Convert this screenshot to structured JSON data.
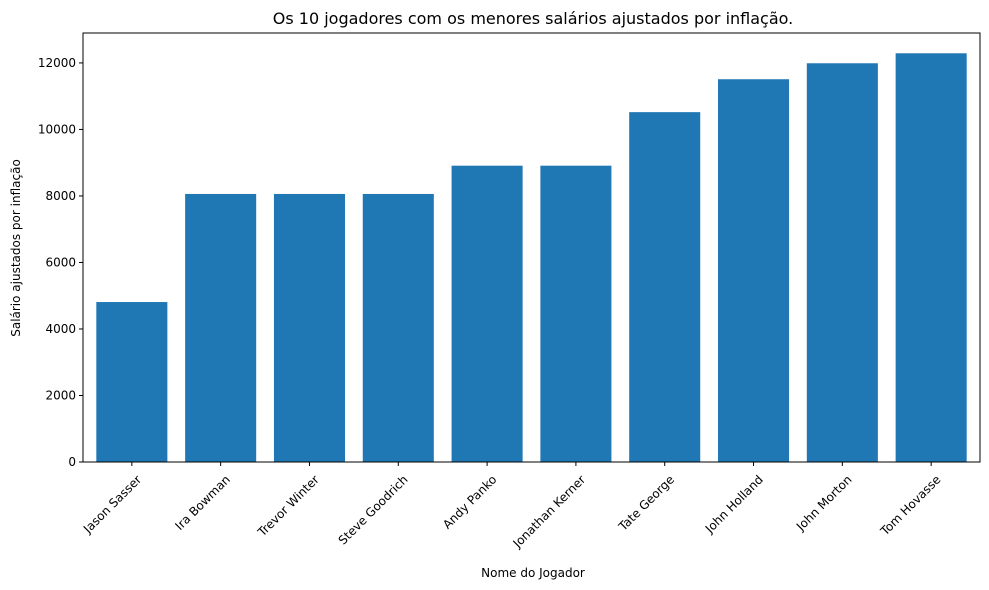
{
  "chart_data": {
    "type": "bar",
    "title": "Os 10 jogadores com os menores salários ajustados por inflação.",
    "xlabel": "Nome do Jogador",
    "ylabel": "Salário ajustados por inflação",
    "categories": [
      "Jason Sasser",
      "Ira Bowman",
      "Trevor Winter",
      "Steve Goodrich",
      "Andy Panko",
      "Jonathan Kerner",
      "Tate George",
      "John Holland",
      "John Morton",
      "Tom Hovasse"
    ],
    "values": [
      4810,
      8060,
      8060,
      8060,
      8910,
      8910,
      10520,
      11510,
      11990,
      12290
    ],
    "yticks": [
      0,
      2000,
      4000,
      6000,
      8000,
      10000,
      12000
    ],
    "ylim": [
      0,
      12900
    ],
    "bar_color": "#1f77b4",
    "grid": false,
    "legend": "none"
  }
}
